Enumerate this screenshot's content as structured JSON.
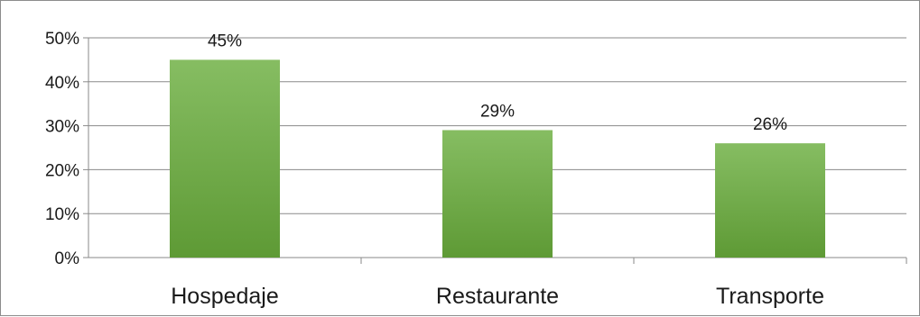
{
  "chart_data": {
    "type": "bar",
    "categories": [
      "Hospedaje",
      "Restaurante",
      "Transporte"
    ],
    "values": [
      45,
      29,
      26
    ],
    "value_labels": [
      "45%",
      "29%",
      "26%"
    ],
    "y_ticks": [
      0,
      10,
      20,
      30,
      40,
      50
    ],
    "y_tick_labels": [
      "0%",
      "10%",
      "20%",
      "30%",
      "40%",
      "50%"
    ],
    "ylim": [
      0,
      50
    ],
    "grid": true,
    "legend": "none",
    "title": "",
    "xlabel": "",
    "ylabel": "",
    "colors": {
      "bar_top": "#86bd62",
      "bar_bottom": "#5e9a35",
      "grid": "#8a8a8a",
      "text": "#1a1a1a"
    }
  }
}
